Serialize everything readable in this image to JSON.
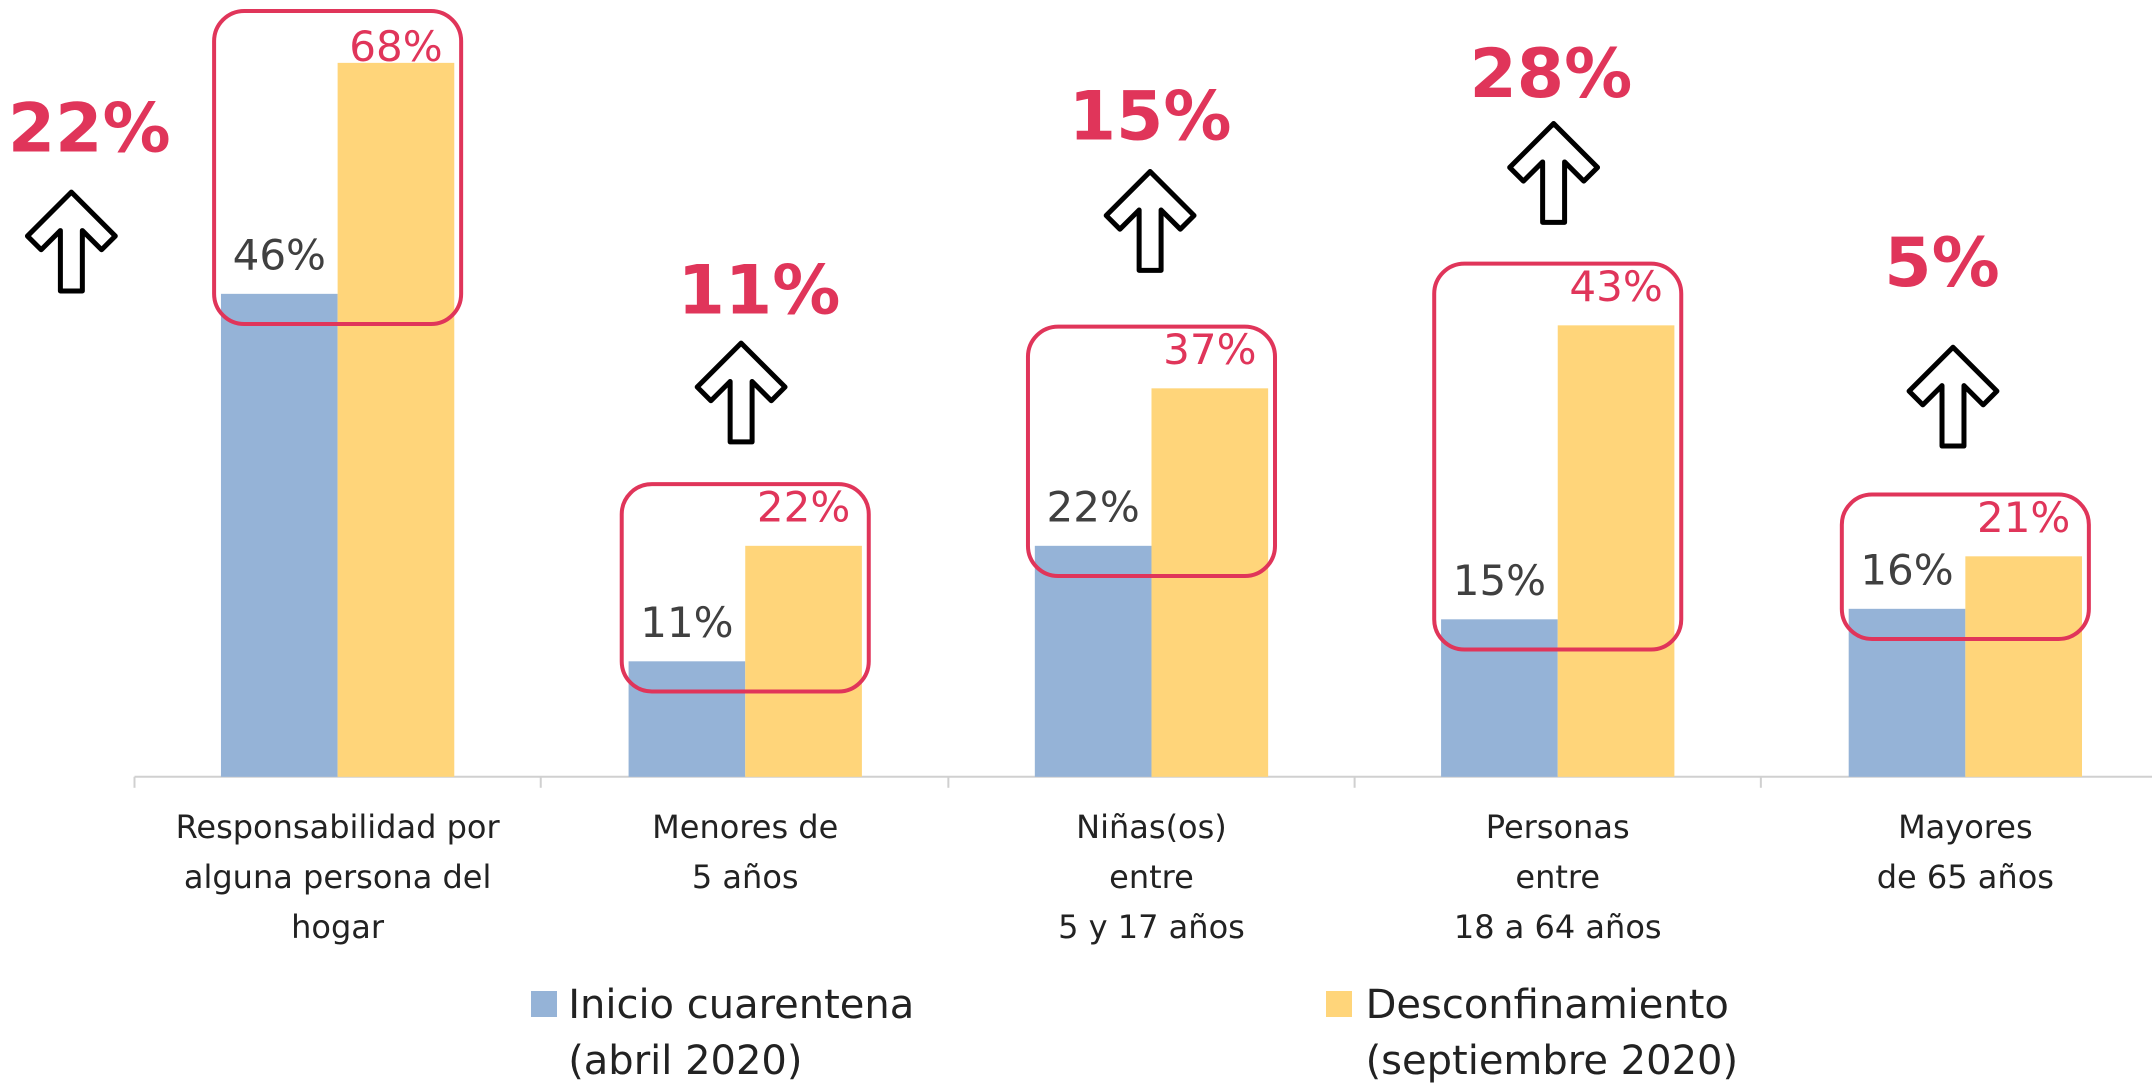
{
  "chart_data": {
    "type": "bar",
    "categories": [
      "Responsabilidad por\nalguna persona del\nhogar",
      "Menores de\n5 años",
      "Niñas(os)\nentre\n5 y 17 años",
      "Personas\nentre\n18 a 64 años",
      "Mayores\nde 65 años"
    ],
    "series": [
      {
        "name": "Inicio cuarentena\n(abril 2020)",
        "color": "#95b3d7",
        "values": [
          46,
          11,
          22,
          15,
          16
        ],
        "value_labels": [
          "46%",
          "11%",
          "22%",
          "15%",
          "16%"
        ]
      },
      {
        "name": "Desconfinamiento\n(septiembre 2020)",
        "color": "#ffd57a",
        "values": [
          68,
          22,
          37,
          43,
          21
        ],
        "value_labels": [
          "68%",
          "22%",
          "37%",
          "43%",
          "21%"
        ]
      }
    ],
    "annotations": [
      "22%",
      "11%",
      "15%",
      "28%",
      "5%"
    ]
  }
}
